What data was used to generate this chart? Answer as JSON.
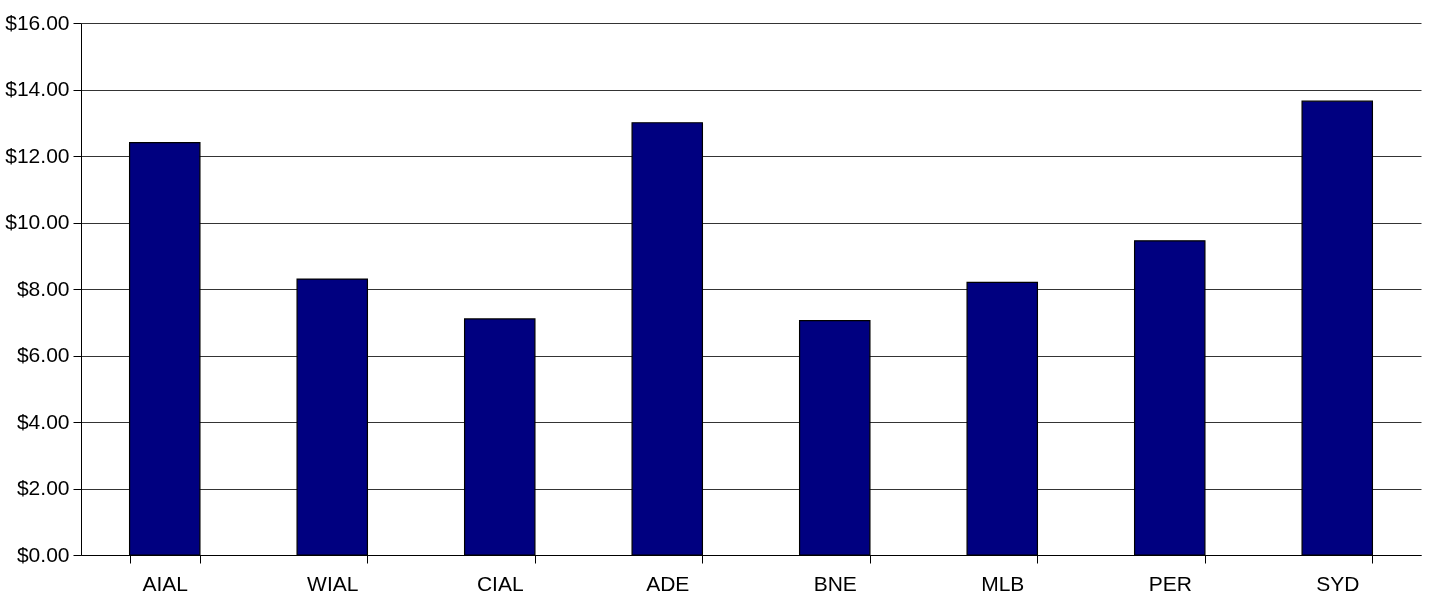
{
  "chart_data": {
    "type": "bar",
    "categories": [
      "AIAL",
      "WIAL",
      "CIAL",
      "ADE",
      "BNE",
      "MLB",
      "PER",
      "SYD"
    ],
    "values": [
      12.4,
      8.3,
      7.1,
      13.0,
      7.05,
      8.2,
      9.45,
      13.65
    ],
    "color": "#000080",
    "ylim": [
      0,
      16
    ],
    "yticks": [
      {
        "value": 0,
        "label": "$0.00"
      },
      {
        "value": 2,
        "label": "$2.00"
      },
      {
        "value": 4,
        "label": "$4.00"
      },
      {
        "value": 6,
        "label": "$6.00"
      },
      {
        "value": 8,
        "label": "$8.00"
      },
      {
        "value": 10,
        "label": "$10.00"
      },
      {
        "value": 12,
        "label": "$12.00"
      },
      {
        "value": 14,
        "label": "$14.00"
      },
      {
        "value": 16,
        "label": "$16.00"
      }
    ],
    "grid": "y"
  }
}
